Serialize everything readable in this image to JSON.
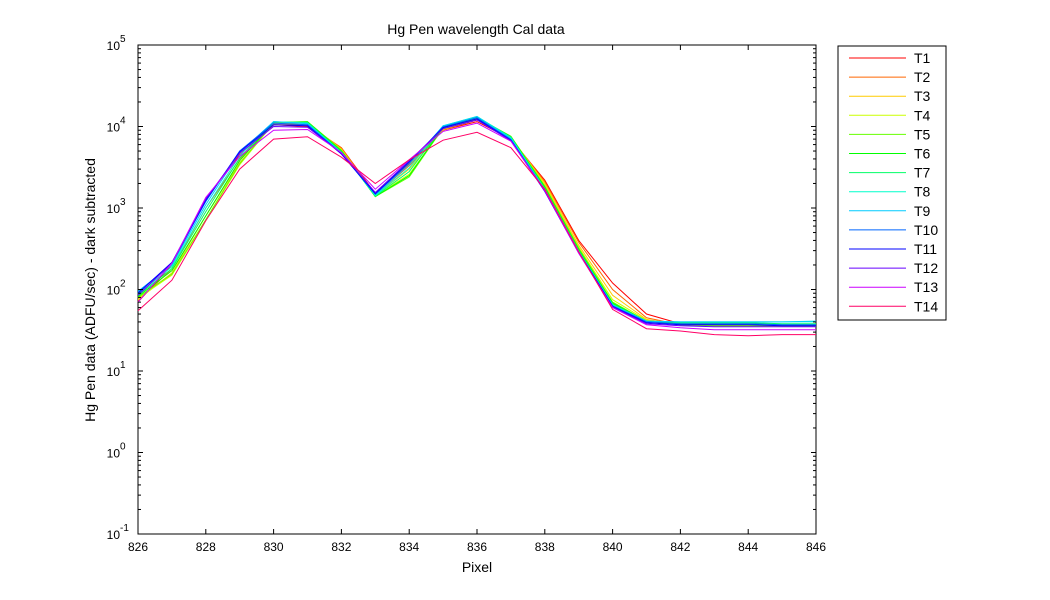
{
  "chart_data": {
    "type": "line",
    "title": "Hg Pen wavelength Cal data",
    "xlabel": "Pixel",
    "ylabel": "Hg Pen data (ADFU/sec) - dark subtracted",
    "yscale": "log",
    "xlim": [
      826,
      846
    ],
    "ylim": [
      0.1,
      100000
    ],
    "xticks": [
      826,
      828,
      830,
      832,
      834,
      836,
      838,
      840,
      842,
      844,
      846
    ],
    "xtick_labels": [
      "826",
      "828",
      "830",
      "832",
      "834",
      "836",
      "838",
      "840",
      "842",
      "844",
      "846"
    ],
    "yticks": [
      {
        "value": 0.1,
        "base": "10",
        "exp": "-1"
      },
      {
        "value": 1,
        "base": "10",
        "exp": "0"
      },
      {
        "value": 10,
        "base": "10",
        "exp": "1"
      },
      {
        "value": 100,
        "base": "10",
        "exp": "2"
      },
      {
        "value": 1000,
        "base": "10",
        "exp": "3"
      },
      {
        "value": 10000,
        "base": "10",
        "exp": "4"
      },
      {
        "value": 100000,
        "base": "10",
        "exp": "5"
      }
    ],
    "grid": false,
    "legend_position": "outside-right",
    "x": [
      826,
      827,
      828,
      829,
      830,
      831,
      832,
      833,
      834,
      835,
      836,
      837,
      838,
      839,
      840,
      841,
      842,
      843,
      844,
      845,
      846
    ],
    "series": [
      {
        "name": "T1",
        "color": "#ff0000",
        "values": [
          70,
          200,
          1300,
          4500,
          10500,
          10000,
          5500,
          1500,
          3500,
          9000,
          11500,
          7000,
          2200,
          400,
          120,
          50,
          38,
          37,
          36,
          36,
          36
        ]
      },
      {
        "name": "T2",
        "color": "#ff6600",
        "values": [
          72,
          180,
          1000,
          4000,
          10500,
          10500,
          5500,
          1450,
          3300,
          9000,
          12000,
          7200,
          2100,
          380,
          100,
          45,
          37,
          36,
          36,
          36,
          36
        ]
      },
      {
        "name": "T3",
        "color": "#ffcc00",
        "values": [
          75,
          160,
          800,
          3600,
          10800,
          11000,
          5300,
          1420,
          3000,
          9200,
          12300,
          7400,
          2000,
          350,
          85,
          43,
          37,
          36,
          36,
          36,
          36
        ]
      },
      {
        "name": "T4",
        "color": "#ccff00",
        "values": [
          78,
          150,
          700,
          3400,
          11000,
          11300,
          5200,
          1400,
          2600,
          9400,
          12600,
          7500,
          1900,
          330,
          75,
          42,
          37,
          36,
          36,
          36,
          36
        ]
      },
      {
        "name": "T5",
        "color": "#66ff00",
        "values": [
          80,
          155,
          720,
          3500,
          11200,
          11500,
          5100,
          1380,
          2400,
          9600,
          12800,
          7600,
          1850,
          320,
          70,
          41,
          37,
          36,
          36,
          36,
          36
        ]
      },
      {
        "name": "T6",
        "color": "#00ff00",
        "values": [
          82,
          170,
          800,
          3800,
          11300,
          11400,
          5000,
          1380,
          2500,
          9800,
          13000,
          7500,
          1800,
          310,
          68,
          41,
          38,
          38,
          38,
          37,
          37
        ]
      },
      {
        "name": "T7",
        "color": "#00ff66",
        "values": [
          85,
          180,
          900,
          4100,
          11400,
          11200,
          4900,
          1400,
          2800,
          10000,
          13200,
          7400,
          1750,
          300,
          66,
          41,
          39,
          39,
          39,
          38,
          38
        ]
      },
      {
        "name": "T8",
        "color": "#00ffcc",
        "values": [
          88,
          190,
          1000,
          4400,
          11500,
          11000,
          4800,
          1420,
          3100,
          10200,
          13300,
          7300,
          1700,
          295,
          65,
          41,
          40,
          40,
          40,
          40,
          40
        ]
      },
      {
        "name": "T9",
        "color": "#00ccff",
        "values": [
          95,
          200,
          1100,
          4800,
          11500,
          10800,
          4700,
          1450,
          3400,
          10200,
          13200,
          7100,
          1650,
          290,
          64,
          41,
          40,
          40,
          40,
          40,
          41
        ]
      },
      {
        "name": "T10",
        "color": "#0066ff",
        "values": [
          92,
          210,
          1200,
          5000,
          11000,
          10500,
          4700,
          1480,
          3600,
          9900,
          12800,
          6900,
          1650,
          290,
          63,
          40,
          38,
          38,
          38,
          37,
          37
        ]
      },
      {
        "name": "T11",
        "color": "#0000ff",
        "values": [
          90,
          215,
          1250,
          4900,
          10500,
          10200,
          4600,
          1500,
          3700,
          9700,
          12400,
          6800,
          1600,
          285,
          62,
          39,
          37,
          37,
          37,
          36,
          36
        ]
      },
      {
        "name": "T12",
        "color": "#6600ff",
        "values": [
          85,
          210,
          1300,
          4700,
          10000,
          9800,
          4700,
          1550,
          3800,
          9400,
          12000,
          6700,
          1600,
          280,
          61,
          38,
          36,
          35,
          35,
          35,
          35
        ]
      },
      {
        "name": "T13",
        "color": "#cc00ff",
        "values": [
          70,
          210,
          1350,
          4300,
          9000,
          9200,
          4800,
          1700,
          3900,
          8700,
          11000,
          6600,
          1650,
          280,
          60,
          37,
          34,
          32,
          32,
          32,
          32
        ]
      },
      {
        "name": "T14",
        "color": "#ff0066",
        "values": [
          55,
          130,
          700,
          3000,
          7000,
          7500,
          4200,
          2000,
          3900,
          6800,
          8500,
          5500,
          1700,
          290,
          57,
          33,
          31,
          28,
          27,
          28,
          28
        ]
      }
    ]
  }
}
